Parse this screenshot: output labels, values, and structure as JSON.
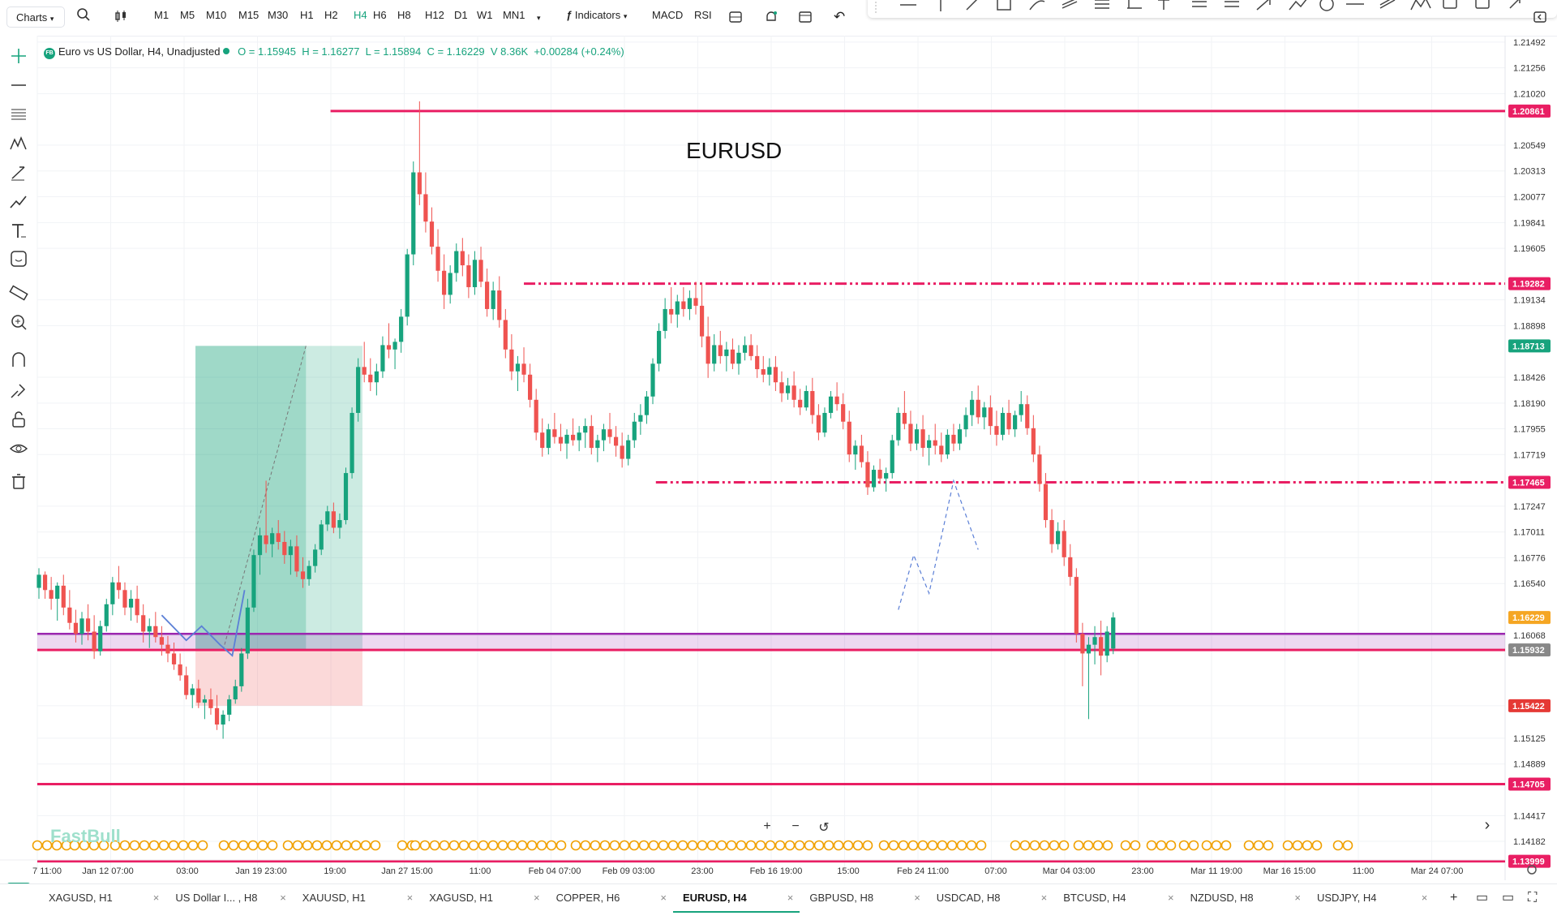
{
  "toolbar": {
    "charts_label": "Charts",
    "timeframes": [
      "M1",
      "M5",
      "M10",
      "M15",
      "M30",
      "H1",
      "H2",
      "H4",
      "H6",
      "H8",
      "H12",
      "D1",
      "W1",
      "MN1"
    ],
    "active_timeframe": "H4",
    "indicators_label": "Indicators",
    "macd_label": "MACD",
    "rsi_label": "RSI"
  },
  "legend": {
    "symbol": "Euro vs US Dollar, H4, Unadjusted",
    "badge": "FB",
    "open": "O = 1.15945",
    "high": "H = 1.16277",
    "low": "L = 1.15894",
    "close": "C = 1.16229",
    "volume": "V 8.36K",
    "change": "+0.00284 (+0.24%)"
  },
  "chart_title": "EURUSD",
  "watermark": "FastBull",
  "colors": {
    "up": "#17a37d",
    "down": "#ef5350",
    "level": "#e91e63",
    "zone": "#9c27b0",
    "projection": "#5b7fd6",
    "accent": "#17a37d",
    "price_tag": "#f5a623"
  },
  "chart_data": {
    "type": "candlestick",
    "symbol": "EURUSD",
    "timeframe": "H4",
    "ylim": [
      1.139,
      1.2155
    ],
    "y_tick_labels": [
      "1.21492",
      "1.21256",
      "1.21020",
      "1.20549",
      "1.20313",
      "1.20077",
      "1.19841",
      "1.19605",
      "1.19134",
      "1.18898",
      "1.18426",
      "1.18190",
      "1.17955",
      "1.17719",
      "1.17247",
      "1.17011",
      "1.16776",
      "1.16540",
      "1.16068",
      "1.15422",
      "1.15125",
      "1.14889",
      "1.14417",
      "1.14182"
    ],
    "x_tick_labels": [
      "7 11:00",
      "Jan 12 07:00",
      "03:00",
      "Jan 19 23:00",
      "19:00",
      "Jan 27 15:00",
      "11:00",
      "Feb 04 07:00",
      "Feb 09 03:00",
      "23:00",
      "Feb 16 19:00",
      "15:00",
      "Feb 24 11:00",
      "07:00",
      "Mar 04 03:00",
      "23:00",
      "Mar 11 19:00",
      "Mar 16 15:00",
      "11:00",
      "Mar 24 07:00"
    ],
    "price_tags": [
      {
        "value": 1.20861,
        "label": "1.20861",
        "kind": "level"
      },
      {
        "value": 1.19282,
        "label": "1.19282",
        "kind": "level"
      },
      {
        "value": 1.18713,
        "label": "1.18713",
        "kind": "target"
      },
      {
        "value": 1.17465,
        "label": "1.17465",
        "kind": "level"
      },
      {
        "value": 1.16229,
        "label": "1.16229",
        "kind": "last"
      },
      {
        "value": 1.15932,
        "label": "1.15932",
        "kind": "zone"
      },
      {
        "value": 1.15422,
        "label": "1.15422",
        "kind": "stop"
      },
      {
        "value": 1.14705,
        "label": "1.14705",
        "kind": "level"
      },
      {
        "value": 1.13999,
        "label": "1.13999",
        "kind": "level"
      }
    ],
    "horizontal_levels": [
      {
        "value": 1.20861,
        "style": "solid"
      },
      {
        "value": 1.19282,
        "style": "dash-dot"
      },
      {
        "value": 1.17465,
        "style": "dash-dot"
      },
      {
        "value": 1.15932,
        "style": "solid"
      },
      {
        "value": 1.14705,
        "style": "solid"
      },
      {
        "value": 1.13999,
        "style": "solid"
      }
    ],
    "zone": {
      "top": 1.1608,
      "bottom": 1.15932
    },
    "position": {
      "entry": 1.15932,
      "target": 1.18713,
      "stop": 1.15422
    },
    "candles": [
      [
        1.165,
        1.1668,
        1.164,
        1.1662
      ],
      [
        1.1662,
        1.1665,
        1.164,
        1.1648
      ],
      [
        1.1648,
        1.166,
        1.163,
        1.164
      ],
      [
        1.164,
        1.1655,
        1.162,
        1.1652
      ],
      [
        1.1652,
        1.1662,
        1.1625,
        1.1632
      ],
      [
        1.1632,
        1.1648,
        1.1612,
        1.1618
      ],
      [
        1.1618,
        1.163,
        1.16,
        1.1608
      ],
      [
        1.1608,
        1.1628,
        1.1598,
        1.1622
      ],
      [
        1.1622,
        1.1635,
        1.1602,
        1.161
      ],
      [
        1.161,
        1.1625,
        1.1585,
        1.1592
      ],
      [
        1.1592,
        1.162,
        1.1588,
        1.1615
      ],
      [
        1.1615,
        1.164,
        1.161,
        1.1635
      ],
      [
        1.1635,
        1.166,
        1.1625,
        1.1655
      ],
      [
        1.1655,
        1.167,
        1.164,
        1.1648
      ],
      [
        1.1648,
        1.1655,
        1.1625,
        1.1632
      ],
      [
        1.1632,
        1.1648,
        1.162,
        1.164
      ],
      [
        1.164,
        1.1652,
        1.1618,
        1.1625
      ],
      [
        1.1625,
        1.1635,
        1.16,
        1.161
      ],
      [
        1.161,
        1.1622,
        1.1595,
        1.1615
      ],
      [
        1.1615,
        1.1628,
        1.16,
        1.1605
      ],
      [
        1.1605,
        1.1615,
        1.1588,
        1.1598
      ],
      [
        1.1598,
        1.1606,
        1.1582,
        1.159
      ],
      [
        1.159,
        1.16,
        1.1575,
        1.158
      ],
      [
        1.158,
        1.159,
        1.1565,
        1.157
      ],
      [
        1.157,
        1.1578,
        1.1548,
        1.1552
      ],
      [
        1.1552,
        1.1562,
        1.154,
        1.1558
      ],
      [
        1.1558,
        1.1566,
        1.154,
        1.1545
      ],
      [
        1.1545,
        1.1552,
        1.153,
        1.1548
      ],
      [
        1.1548,
        1.1558,
        1.1534,
        1.154
      ],
      [
        1.154,
        1.1552,
        1.152,
        1.1525
      ],
      [
        1.1525,
        1.1538,
        1.1512,
        1.1534
      ],
      [
        1.1534,
        1.1552,
        1.1528,
        1.1548
      ],
      [
        1.1548,
        1.1566,
        1.1544,
        1.156
      ],
      [
        1.156,
        1.1595,
        1.1555,
        1.159
      ],
      [
        1.159,
        1.164,
        1.1585,
        1.1632
      ],
      [
        1.1632,
        1.1685,
        1.1628,
        1.168
      ],
      [
        1.168,
        1.1705,
        1.1662,
        1.1698
      ],
      [
        1.1698,
        1.1748,
        1.1682,
        1.169
      ],
      [
        1.169,
        1.1705,
        1.1678,
        1.17
      ],
      [
        1.17,
        1.1712,
        1.1685,
        1.1692
      ],
      [
        1.1692,
        1.1702,
        1.1672,
        1.168
      ],
      [
        1.168,
        1.1694,
        1.1662,
        1.1688
      ],
      [
        1.1688,
        1.1698,
        1.166,
        1.1665
      ],
      [
        1.1665,
        1.1678,
        1.165,
        1.1658
      ],
      [
        1.1658,
        1.1675,
        1.1652,
        1.167
      ],
      [
        1.167,
        1.169,
        1.1664,
        1.1685
      ],
      [
        1.1685,
        1.1712,
        1.168,
        1.1708
      ],
      [
        1.1708,
        1.1725,
        1.1702,
        1.172
      ],
      [
        1.172,
        1.1728,
        1.17,
        1.1705
      ],
      [
        1.1705,
        1.1718,
        1.1695,
        1.1712
      ],
      [
        1.1712,
        1.176,
        1.1708,
        1.1755
      ],
      [
        1.1755,
        1.1815,
        1.175,
        1.181
      ],
      [
        1.181,
        1.186,
        1.1802,
        1.1852
      ],
      [
        1.1852,
        1.1875,
        1.1838,
        1.1845
      ],
      [
        1.1845,
        1.186,
        1.183,
        1.1838
      ],
      [
        1.1838,
        1.1855,
        1.1826,
        1.1848
      ],
      [
        1.1848,
        1.188,
        1.1842,
        1.1872
      ],
      [
        1.1872,
        1.1892,
        1.186,
        1.1868
      ],
      [
        1.1868,
        1.1878,
        1.185,
        1.1875
      ],
      [
        1.1875,
        1.1905,
        1.1865,
        1.1898
      ],
      [
        1.1898,
        1.196,
        1.189,
        1.1955
      ],
      [
        1.1955,
        1.204,
        1.1945,
        1.203
      ],
      [
        1.203,
        1.2095,
        1.2,
        1.201
      ],
      [
        1.201,
        1.203,
        1.1975,
        1.1985
      ],
      [
        1.1985,
        1.1998,
        1.1955,
        1.1962
      ],
      [
        1.1962,
        1.1978,
        1.193,
        1.194
      ],
      [
        1.194,
        1.1955,
        1.1905,
        1.1918
      ],
      [
        1.1918,
        1.1945,
        1.191,
        1.1938
      ],
      [
        1.1938,
        1.1965,
        1.193,
        1.1958
      ],
      [
        1.1958,
        1.197,
        1.1935,
        1.1945
      ],
      [
        1.1945,
        1.1955,
        1.1915,
        1.1925
      ],
      [
        1.1925,
        1.1958,
        1.1918,
        1.195
      ],
      [
        1.195,
        1.1962,
        1.1925,
        1.193
      ],
      [
        1.193,
        1.1942,
        1.1898,
        1.1905
      ],
      [
        1.1905,
        1.193,
        1.1895,
        1.1922
      ],
      [
        1.1922,
        1.1935,
        1.1888,
        1.1895
      ],
      [
        1.1895,
        1.1905,
        1.186,
        1.1868
      ],
      [
        1.1868,
        1.1882,
        1.184,
        1.1848
      ],
      [
        1.1848,
        1.1862,
        1.183,
        1.1855
      ],
      [
        1.1855,
        1.187,
        1.1838,
        1.1845
      ],
      [
        1.1845,
        1.1855,
        1.1815,
        1.1822
      ],
      [
        1.1822,
        1.1832,
        1.1785,
        1.1792
      ],
      [
        1.1792,
        1.1805,
        1.177,
        1.1778
      ],
      [
        1.1778,
        1.18,
        1.1772,
        1.1795
      ],
      [
        1.1795,
        1.181,
        1.1782,
        1.1788
      ],
      [
        1.1788,
        1.18,
        1.1775,
        1.1782
      ],
      [
        1.1782,
        1.1795,
        1.1768,
        1.179
      ],
      [
        1.179,
        1.1805,
        1.178,
        1.1785
      ],
      [
        1.1785,
        1.1798,
        1.1775,
        1.1792
      ],
      [
        1.1792,
        1.1805,
        1.1778,
        1.1798
      ],
      [
        1.1798,
        1.1808,
        1.1772,
        1.1778
      ],
      [
        1.1778,
        1.179,
        1.1765,
        1.1785
      ],
      [
        1.1785,
        1.18,
        1.1775,
        1.1795
      ],
      [
        1.1795,
        1.181,
        1.1782,
        1.1788
      ],
      [
        1.1788,
        1.1798,
        1.177,
        1.178
      ],
      [
        1.178,
        1.1792,
        1.176,
        1.1768
      ],
      [
        1.1768,
        1.179,
        1.1762,
        1.1785
      ],
      [
        1.1785,
        1.181,
        1.1778,
        1.1802
      ],
      [
        1.1802,
        1.1818,
        1.179,
        1.1808
      ],
      [
        1.1808,
        1.183,
        1.18,
        1.1825
      ],
      [
        1.1825,
        1.186,
        1.1818,
        1.1855
      ],
      [
        1.1855,
        1.1892,
        1.1848,
        1.1885
      ],
      [
        1.1885,
        1.1915,
        1.1878,
        1.1905
      ],
      [
        1.1905,
        1.1925,
        1.1892,
        1.19
      ],
      [
        1.19,
        1.1918,
        1.1888,
        1.1912
      ],
      [
        1.1912,
        1.1925,
        1.1898,
        1.1905
      ],
      [
        1.1905,
        1.1922,
        1.1895,
        1.1915
      ],
      [
        1.1915,
        1.193,
        1.19,
        1.1908
      ],
      [
        1.1908,
        1.1928,
        1.187,
        1.188
      ],
      [
        1.188,
        1.1898,
        1.1842,
        1.1855
      ],
      [
        1.1855,
        1.1882,
        1.1848,
        1.1872
      ],
      [
        1.1872,
        1.1885,
        1.1855,
        1.1862
      ],
      [
        1.1862,
        1.1875,
        1.1848,
        1.1868
      ],
      [
        1.1868,
        1.1878,
        1.185,
        1.1855
      ],
      [
        1.1855,
        1.1872,
        1.1845,
        1.1865
      ],
      [
        1.1865,
        1.188,
        1.1858,
        1.1872
      ],
      [
        1.1872,
        1.1882,
        1.1858,
        1.1862
      ],
      [
        1.1862,
        1.1872,
        1.1842,
        1.185
      ],
      [
        1.185,
        1.1862,
        1.1838,
        1.1845
      ],
      [
        1.1845,
        1.186,
        1.1835,
        1.1852
      ],
      [
        1.1852,
        1.1862,
        1.183,
        1.1838
      ],
      [
        1.1838,
        1.1848,
        1.182,
        1.1828
      ],
      [
        1.1828,
        1.1842,
        1.1822,
        1.1835
      ],
      [
        1.1835,
        1.1848,
        1.1815,
        1.1822
      ],
      [
        1.1822,
        1.1832,
        1.1808,
        1.1815
      ],
      [
        1.1815,
        1.1835,
        1.1812,
        1.183
      ],
      [
        1.183,
        1.1842,
        1.18,
        1.1808
      ],
      [
        1.1808,
        1.1818,
        1.1785,
        1.1792
      ],
      [
        1.1792,
        1.1815,
        1.1788,
        1.181
      ],
      [
        1.181,
        1.183,
        1.1805,
        1.1825
      ],
      [
        1.1825,
        1.1838,
        1.1812,
        1.1818
      ],
      [
        1.1818,
        1.1828,
        1.1795,
        1.1802
      ],
      [
        1.1802,
        1.1812,
        1.1765,
        1.1772
      ],
      [
        1.1772,
        1.1785,
        1.1758,
        1.178
      ],
      [
        1.178,
        1.179,
        1.176,
        1.1765
      ],
      [
        1.1765,
        1.1775,
        1.1735,
        1.1742
      ],
      [
        1.1742,
        1.1762,
        1.1738,
        1.1758
      ],
      [
        1.1758,
        1.1768,
        1.1745,
        1.175
      ],
      [
        1.175,
        1.176,
        1.1738,
        1.1755
      ],
      [
        1.1755,
        1.179,
        1.175,
        1.1785
      ],
      [
        1.1785,
        1.1815,
        1.178,
        1.181
      ],
      [
        1.181,
        1.183,
        1.1795,
        1.18
      ],
      [
        1.18,
        1.1812,
        1.1775,
        1.1782
      ],
      [
        1.1782,
        1.18,
        1.1776,
        1.1795
      ],
      [
        1.1795,
        1.1808,
        1.177,
        1.1778
      ],
      [
        1.1778,
        1.179,
        1.1762,
        1.1785
      ],
      [
        1.1785,
        1.18,
        1.1772,
        1.178
      ],
      [
        1.178,
        1.1792,
        1.1765,
        1.1772
      ],
      [
        1.1772,
        1.1795,
        1.1768,
        1.179
      ],
      [
        1.179,
        1.18,
        1.1775,
        1.1782
      ],
      [
        1.1782,
        1.18,
        1.1776,
        1.1795
      ],
      [
        1.1795,
        1.1815,
        1.1788,
        1.1808
      ],
      [
        1.1808,
        1.183,
        1.1798,
        1.1822
      ],
      [
        1.1822,
        1.1835,
        1.18,
        1.1806
      ],
      [
        1.1806,
        1.182,
        1.1795,
        1.1815
      ],
      [
        1.1815,
        1.1826,
        1.179,
        1.1798
      ],
      [
        1.1798,
        1.1812,
        1.178,
        1.179
      ],
      [
        1.179,
        1.1815,
        1.1785,
        1.181
      ],
      [
        1.181,
        1.1822,
        1.179,
        1.1795
      ],
      [
        1.1795,
        1.1812,
        1.1788,
        1.1808
      ],
      [
        1.1808,
        1.183,
        1.1802,
        1.1818
      ],
      [
        1.1818,
        1.1826,
        1.179,
        1.1796
      ],
      [
        1.1796,
        1.1808,
        1.1765,
        1.1772
      ],
      [
        1.1772,
        1.178,
        1.1738,
        1.1745
      ],
      [
        1.1745,
        1.1755,
        1.1705,
        1.1712
      ],
      [
        1.1712,
        1.1722,
        1.1682,
        1.169
      ],
      [
        1.169,
        1.171,
        1.1685,
        1.1702
      ],
      [
        1.1702,
        1.1712,
        1.167,
        1.1678
      ],
      [
        1.1678,
        1.169,
        1.1652,
        1.166
      ],
      [
        1.166,
        1.1668,
        1.16,
        1.1608
      ],
      [
        1.1608,
        1.1618,
        1.156,
        1.159
      ],
      [
        1.159,
        1.1605,
        1.153,
        1.1598
      ],
      [
        1.1598,
        1.1615,
        1.158,
        1.1605
      ],
      [
        1.1605,
        1.162,
        1.157,
        1.1588
      ],
      [
        1.1588,
        1.1615,
        1.1582,
        1.161
      ],
      [
        1.15945,
        1.16277,
        1.15894,
        1.16229
      ]
    ]
  },
  "bottom_tabs": [
    {
      "label": "XAGUSD, H1",
      "active": false
    },
    {
      "label": "US Dollar I... , H8",
      "active": false
    },
    {
      "label": "XAUUSD, H1",
      "active": false
    },
    {
      "label": "XAGUSD, H1",
      "active": false
    },
    {
      "label": "COPPER, H6",
      "active": false
    },
    {
      "label": "EURUSD, H4",
      "active": true
    },
    {
      "label": "GBPUSD, H8",
      "active": false
    },
    {
      "label": "USDCAD, H8",
      "active": false
    },
    {
      "label": "BTCUSD, H4",
      "active": false
    },
    {
      "label": "NZDUSD, H8",
      "active": false
    },
    {
      "label": "USDJPY, H4",
      "active": false
    }
  ],
  "tab_close_glyph": "×",
  "zoom": {
    "plus": "+",
    "minus": "−",
    "reset": "↺",
    "next": "›"
  },
  "left_tools": [
    "crosshair-icon",
    "horizontal-line-icon",
    "fib-icon",
    "pattern-icon",
    "brush-icon",
    "trend-icon",
    "text-icon",
    "emoji-icon",
    "ruler-icon",
    "zoom-in-icon",
    "magnet-icon",
    "draw-mode-icon",
    "lock-icon",
    "eye-icon",
    "trash-icon"
  ]
}
